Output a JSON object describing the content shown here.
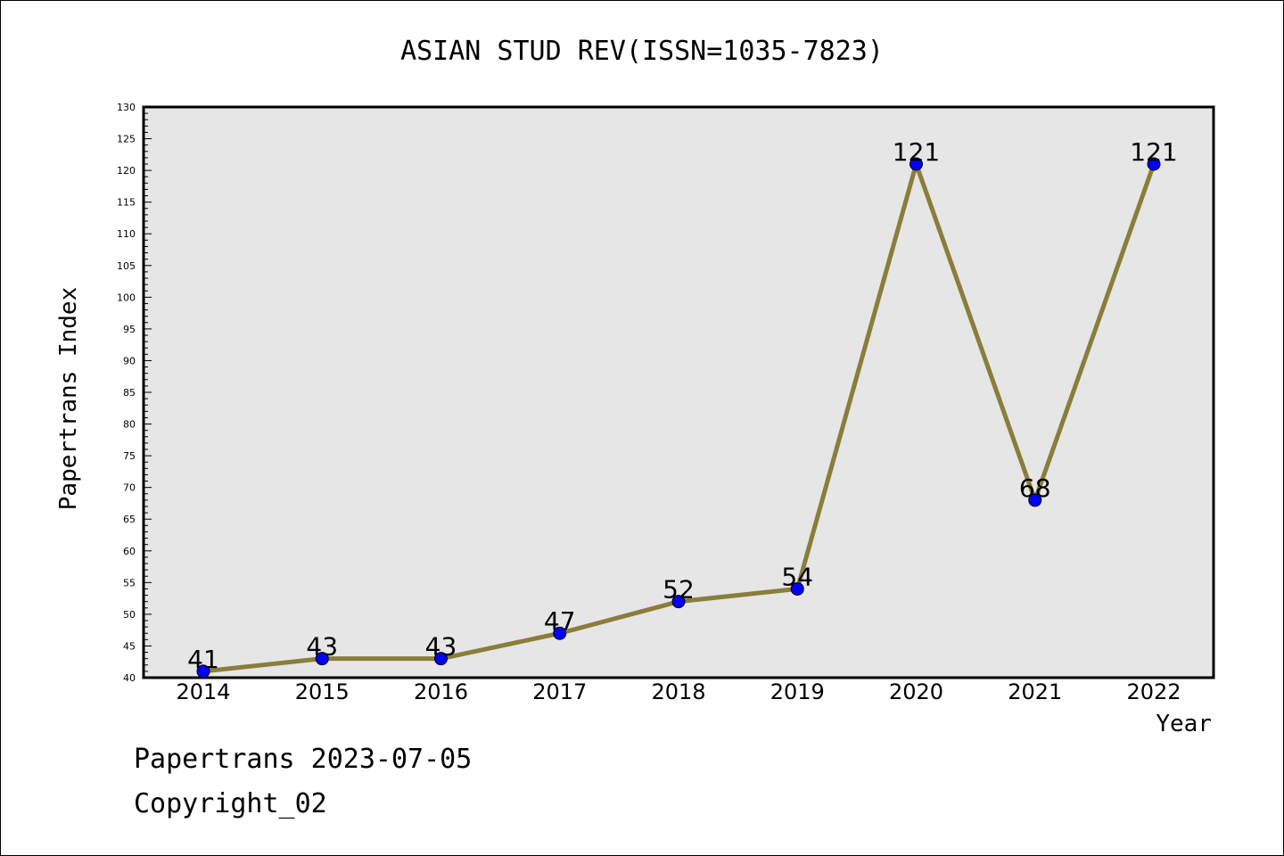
{
  "chart_data": {
    "type": "line",
    "title": "ASIAN STUD REV(ISSN=1035-7823)",
    "xlabel": "Year",
    "ylabel": "Papertrans Index",
    "categories": [
      "2014",
      "2015",
      "2016",
      "2017",
      "2018",
      "2019",
      "2020",
      "2021",
      "2022"
    ],
    "series": [
      {
        "values": [
          41,
          43,
          43,
          47,
          52,
          54,
          121,
          68,
          121
        ],
        "line_color": "#8b7d3a",
        "marker_color": "#0000ff"
      }
    ],
    "data_labels": [
      "41",
      "43",
      "43",
      "47",
      "52",
      "54",
      "121",
      "68",
      "121"
    ],
    "ylim": [
      40,
      130
    ],
    "y_ticks": [
      "40",
      "45",
      "50",
      "55",
      "60",
      "65",
      "70",
      "75",
      "80",
      "85",
      "90",
      "95",
      "100",
      "105",
      "110",
      "115",
      "120",
      "125",
      "130"
    ],
    "grid": false,
    "plot_background": "#e6e6e6"
  },
  "footer": {
    "line1": "Papertrans 2023-07-05",
    "line2": "Copyright_02"
  }
}
